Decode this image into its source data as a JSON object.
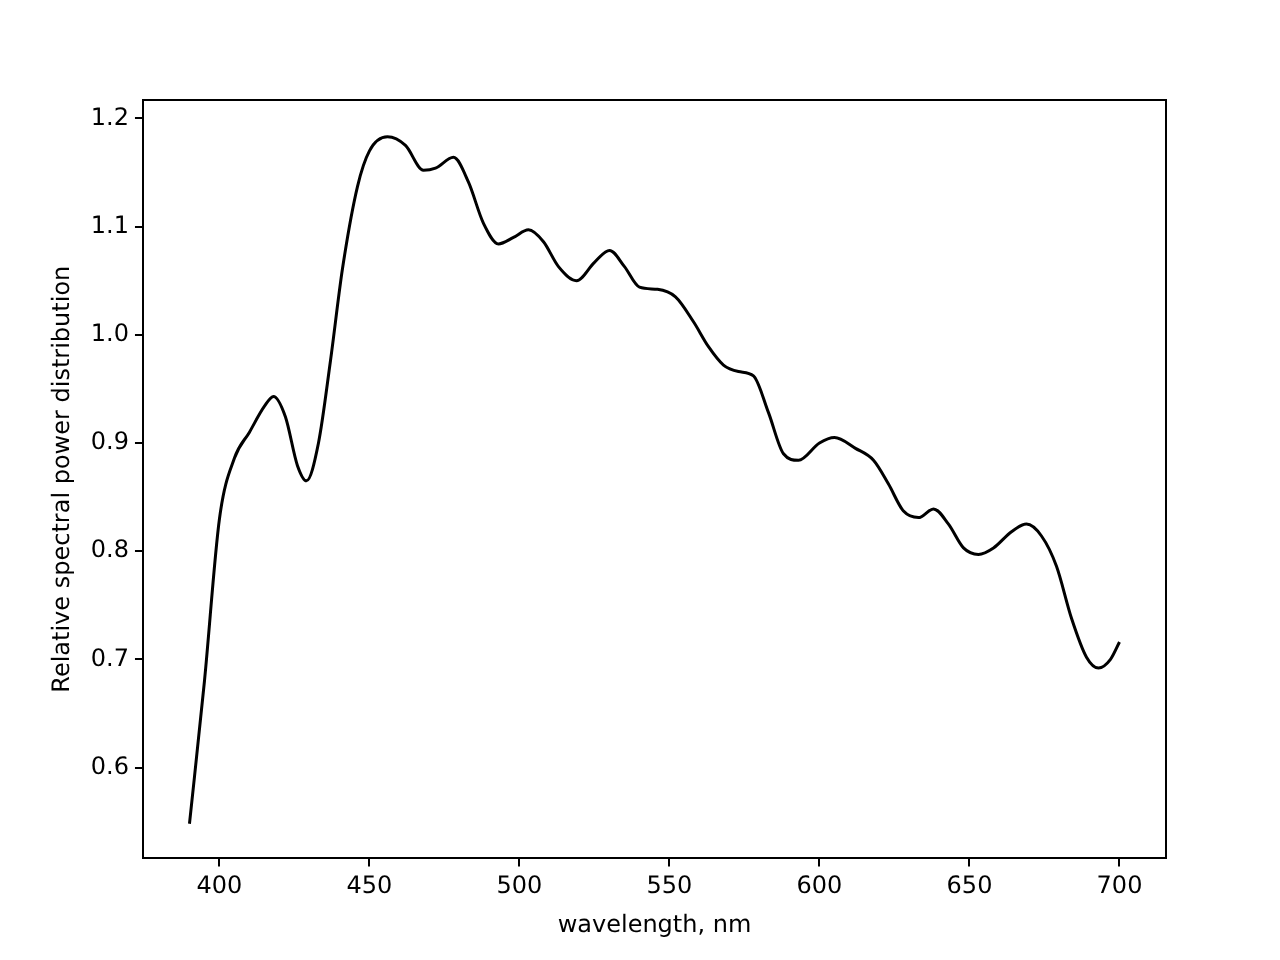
{
  "chart_data": {
    "type": "line",
    "xlabel": "wavelength, nm",
    "ylabel": "Relative spectral power distribution",
    "x": [
      390,
      395,
      400,
      405,
      410,
      415,
      418,
      422,
      426,
      429,
      433,
      437,
      441,
      446,
      450,
      456,
      462,
      468,
      472,
      478,
      483,
      488,
      493,
      498,
      503,
      508,
      513,
      519,
      525,
      530,
      535,
      540,
      546,
      552,
      558,
      563,
      568,
      573,
      578,
      583,
      588,
      593,
      600,
      605,
      612,
      618,
      623,
      628,
      633,
      638,
      643,
      648,
      653,
      658,
      664,
      669,
      674,
      679,
      684,
      689,
      693,
      697,
      700
    ],
    "series": [
      {
        "color": "#000000",
        "values": [
          0.548,
          0.68,
          0.83,
          0.886,
          0.91,
          0.934,
          0.943,
          0.924,
          0.879,
          0.865,
          0.9,
          0.976,
          1.061,
          1.137,
          1.17,
          1.183,
          1.175,
          1.152,
          1.154,
          1.164,
          1.141,
          1.103,
          1.084,
          1.09,
          1.097,
          1.086,
          1.063,
          1.05,
          1.067,
          1.078,
          1.063,
          1.044,
          1.042,
          1.035,
          1.012,
          0.989,
          0.972,
          0.966,
          0.962,
          0.928,
          0.89,
          0.884,
          0.9,
          0.905,
          0.895,
          0.884,
          0.862,
          0.837,
          0.831,
          0.839,
          0.825,
          0.803,
          0.797,
          0.803,
          0.818,
          0.825,
          0.814,
          0.786,
          0.738,
          0.702,
          0.692,
          0.7,
          0.716
        ]
      }
    ],
    "xlim": [
      374.5,
      715.5
    ],
    "xticks": [
      400,
      450,
      500,
      550,
      600,
      650,
      700
    ],
    "ylim": [
      0.516,
      1.217
    ],
    "yticks": [
      0.6,
      0.7,
      0.8,
      0.9,
      {
        "value": 1,
        "label": "1.0"
      },
      1.1,
      1.2
    ],
    "grid": false,
    "legend": false,
    "marker": "none",
    "line_style": "solid"
  }
}
